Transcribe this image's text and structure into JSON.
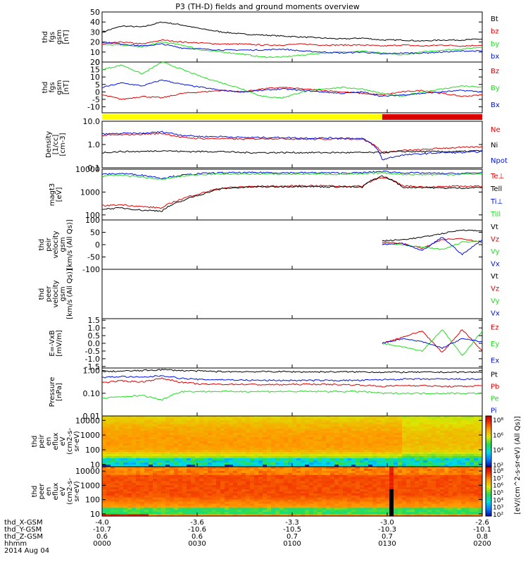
{
  "title": "P3 (TH-D) fields and ground moments overview",
  "colors": {
    "black": "#000000",
    "red": "#e00000",
    "green": "#22dd22",
    "blue": "#0010e0",
    "yellow": "#ffff00",
    "bar_red": "#dd0000"
  },
  "chart_data": [
    {
      "type": "line",
      "name": "fgs_mag",
      "ylabel": [
        "thd",
        "fgs",
        "gsm",
        "[nT]"
      ],
      "ylim": [
        0,
        50
      ],
      "yticks": [
        "50",
        "40",
        "30",
        "20",
        "10",
        "0"
      ],
      "ytick_values": [
        50,
        40,
        30,
        20,
        10,
        0
      ],
      "series": [
        {
          "name": "Bt",
          "color": "black",
          "values": [
            30,
            36,
            35,
            40,
            37,
            33,
            30,
            28,
            27,
            26,
            25,
            24,
            23,
            24,
            22,
            22,
            21,
            22,
            22,
            23
          ]
        },
        {
          "name": "bz",
          "color": "red",
          "values": [
            18,
            20,
            18,
            22,
            20,
            19,
            18,
            18,
            17,
            17,
            18,
            17,
            17,
            17,
            16,
            17,
            16,
            17,
            16,
            17
          ]
        },
        {
          "name": "by",
          "color": "green",
          "values": [
            17,
            17,
            15,
            20,
            17,
            12,
            10,
            8,
            5,
            5,
            7,
            9,
            10,
            11,
            9,
            7,
            10,
            12,
            13,
            15
          ]
        },
        {
          "name": "bx",
          "color": "blue",
          "values": [
            20,
            18,
            16,
            18,
            14,
            13,
            12,
            12,
            12,
            13,
            11,
            10,
            9,
            10,
            8,
            9,
            9,
            10,
            11,
            11
          ]
        }
      ]
    },
    {
      "type": "line",
      "name": "fgs_gsm",
      "ylabel": [
        "thd",
        "fgs",
        "gsm",
        "[nT]"
      ],
      "ylim": [
        -14,
        20
      ],
      "yticks": [
        "20",
        "15",
        "10",
        "5",
        "0",
        "-5",
        "-10"
      ],
      "ytick_values": [
        20,
        15,
        10,
        5,
        0,
        -5,
        -10
      ],
      "series": [
        {
          "name": "Bz",
          "color": "red",
          "values": [
            -2,
            -5,
            -3,
            -4,
            -1,
            0,
            1,
            0,
            2,
            3,
            2,
            1,
            0,
            -1,
            -2,
            0,
            1,
            -1,
            -3,
            -2
          ]
        },
        {
          "name": "By",
          "color": "green",
          "values": [
            15,
            18,
            12,
            20,
            15,
            10,
            6,
            2,
            -3,
            -4,
            0,
            2,
            3,
            2,
            -1,
            -3,
            0,
            2,
            4,
            3
          ]
        },
        {
          "name": "Bx",
          "color": "blue",
          "values": [
            3,
            6,
            4,
            8,
            5,
            3,
            1,
            0,
            1,
            2,
            1,
            0,
            -1,
            0,
            -3,
            -2,
            -1,
            0,
            1,
            0
          ]
        }
      ]
    },
    {
      "type": "line",
      "name": "density",
      "ylabel": [
        "Density",
        "[1/cc]",
        "[cm-3]"
      ],
      "log": true,
      "ylim": [
        0.1,
        10
      ],
      "yticks": [
        "10.0",
        "1.0",
        "0.1"
      ],
      "ytick_values": [
        10,
        1,
        0.1
      ],
      "series": [
        {
          "name": "Ne",
          "color": "red",
          "values": [
            2.5,
            2.6,
            2.8,
            3.0,
            2.0,
            1.8,
            1.8,
            1.7,
            1.8,
            1.8,
            1.7,
            1.7,
            1.8,
            1.7,
            0.45,
            0.55,
            0.6,
            0.7,
            0.75,
            0.8
          ]
        },
        {
          "name": "Ni",
          "color": "black",
          "values": [
            0.45,
            0.5,
            0.5,
            0.55,
            0.5,
            0.5,
            0.5,
            0.45,
            0.45,
            0.45,
            0.45,
            0.45,
            0.45,
            0.45,
            0.45,
            0.5,
            0.5,
            0.5,
            0.5,
            0.55
          ]
        },
        {
          "name": "Npot",
          "color": "blue",
          "values": [
            2.8,
            3.0,
            3.0,
            3.5,
            2.5,
            2.2,
            2.2,
            2.0,
            2.0,
            2.0,
            1.9,
            1.9,
            1.9,
            1.8,
            0.22,
            0.35,
            0.4,
            0.45,
            0.45,
            0.5
          ]
        }
      ]
    },
    {
      "type": "line",
      "name": "temperature",
      "ylabel": [
        "magt3",
        "[eV]"
      ],
      "log": true,
      "ylim": [
        60,
        10000
      ],
      "yticks": [
        "10000",
        "1000",
        "100"
      ],
      "ytick_values": [
        10000,
        1000,
        100
      ],
      "series": [
        {
          "name": "Te⊥",
          "color": "red",
          "values": [
            250,
            280,
            230,
            200,
            500,
            900,
            1500,
            1700,
            1800,
            1800,
            1900,
            1900,
            1800,
            1800,
            4500,
            1900,
            1700,
            1700,
            1800,
            1800
          ]
        },
        {
          "name": "Tell",
          "color": "black",
          "values": [
            180,
            200,
            160,
            150,
            400,
            800,
            1400,
            1600,
            1700,
            1700,
            1800,
            1700,
            1700,
            1600,
            5000,
            1600,
            1600,
            1500,
            1500,
            1600
          ]
        },
        {
          "name": "Ti⊥",
          "color": "blue",
          "values": [
            6000,
            6500,
            5500,
            4000,
            5500,
            6500,
            7000,
            7000,
            7200,
            7000,
            7000,
            7000,
            6800,
            7000,
            8000,
            7000,
            6800,
            6500,
            6500,
            7000
          ]
        },
        {
          "name": "Till",
          "color": "green",
          "values": [
            5000,
            5500,
            4500,
            3500,
            5000,
            6000,
            6200,
            6200,
            6300,
            6000,
            6200,
            6200,
            6000,
            6200,
            7000,
            6000,
            5800,
            5800,
            6000,
            6200
          ]
        }
      ]
    },
    {
      "type": "line",
      "name": "peir_velocity",
      "ylabel": [
        "thd",
        "peir",
        "velocity",
        "gsm",
        "[km/s (All Qs)]"
      ],
      "ylim": [
        -100,
        100
      ],
      "yticks": [
        "100",
        "50",
        "0",
        "-50",
        "-100"
      ],
      "ytick_values": [
        100,
        50,
        0,
        -50,
        -100
      ],
      "data_start_index": 14,
      "series": [
        {
          "name": "Vt",
          "color": "black",
          "values": [
            15,
            20,
            30,
            45,
            60,
            55
          ]
        },
        {
          "name": "Vz",
          "color": "red",
          "values": [
            10,
            5,
            -15,
            20,
            25,
            10
          ]
        },
        {
          "name": "Vy",
          "color": "green",
          "values": [
            5,
            0,
            -10,
            -20,
            10,
            15
          ]
        },
        {
          "name": "Vx",
          "color": "blue",
          "values": [
            0,
            5,
            -25,
            30,
            -40,
            20
          ]
        }
      ]
    },
    {
      "type": "line",
      "name": "peer_velocity",
      "ylabel": [
        "thd",
        "peer",
        "velocity",
        "gsm",
        "[km/s (All Qs)]"
      ],
      "ylim": [
        0,
        1
      ],
      "yticks": [],
      "ytick_values": [],
      "series": [
        {
          "name": "Vt",
          "color": "black",
          "values": []
        },
        {
          "name": "Vz",
          "color": "red",
          "values": []
        },
        {
          "name": "Vy",
          "color": "green",
          "values": []
        },
        {
          "name": "Vx",
          "color": "blue",
          "values": []
        }
      ]
    },
    {
      "type": "line",
      "name": "efield",
      "ylabel": [
        "E=-VxB",
        "[mV/m]"
      ],
      "ylim": [
        -1.6,
        1.6
      ],
      "yticks": [
        "1.5",
        "1.0",
        "0.5",
        "0.0",
        "-0.5",
        "-1.0",
        "-1.5"
      ],
      "ytick_values": [
        1.5,
        1,
        0.5,
        0,
        -0.5,
        -1,
        -1.5
      ],
      "data_start_index": 14,
      "series": [
        {
          "name": "Ez",
          "color": "red",
          "values": [
            0.0,
            0.4,
            0.8,
            -0.6,
            0.9,
            -0.5
          ]
        },
        {
          "name": "Ey",
          "color": "green",
          "values": [
            0.0,
            -0.2,
            -0.5,
            0.9,
            -0.8,
            0.8
          ]
        },
        {
          "name": "Ex",
          "color": "blue",
          "values": [
            0.0,
            0.3,
            0.1,
            -0.3,
            0.3,
            0.1
          ]
        }
      ]
    },
    {
      "type": "line",
      "name": "pressure",
      "ylabel": [
        "Pressure",
        "[nPa]"
      ],
      "log": true,
      "ylim": [
        0.01,
        1.3
      ],
      "yticks": [
        "1.00",
        "0.10",
        "0.01"
      ],
      "ytick_values": [
        1,
        0.1,
        0.01
      ],
      "series": [
        {
          "name": "Pt",
          "color": "black",
          "values": [
            0.9,
            0.95,
            1.0,
            1.1,
            1.0,
            0.95,
            0.9,
            0.9,
            0.9,
            0.9,
            0.88,
            0.88,
            0.88,
            0.88,
            0.85,
            0.85,
            0.85,
            0.85,
            0.85,
            0.85
          ]
        },
        {
          "name": "Pb",
          "color": "red",
          "values": [
            0.3,
            0.35,
            0.32,
            0.45,
            0.3,
            0.25,
            0.25,
            0.25,
            0.24,
            0.24,
            0.25,
            0.25,
            0.24,
            0.23,
            0.2,
            0.22,
            0.22,
            0.2,
            0.2,
            0.22
          ]
        },
        {
          "name": "Pe",
          "color": "green",
          "values": [
            0.06,
            0.07,
            0.08,
            0.05,
            0.12,
            0.12,
            0.12,
            0.12,
            0.12,
            0.12,
            0.12,
            0.12,
            0.12,
            0.12,
            0.1,
            0.1,
            0.1,
            0.1,
            0.1,
            0.1
          ]
        },
        {
          "name": "Pi",
          "color": "blue",
          "values": [
            0.5,
            0.55,
            0.5,
            0.6,
            0.45,
            0.4,
            0.4,
            0.38,
            0.37,
            0.37,
            0.37,
            0.37,
            0.37,
            0.37,
            0.4,
            0.42,
            0.42,
            0.42,
            0.42,
            0.42
          ]
        }
      ]
    },
    {
      "type": "heatmap",
      "name": "peir_spectrogram",
      "ylabel": [
        "thd",
        "peir",
        "en",
        "eflux",
        "eV",
        "(cm2-s-",
        "sr-eV)"
      ],
      "log": true,
      "ylim": [
        7,
        20000
      ],
      "yticks": [
        "10000",
        "1000",
        "100",
        "10"
      ],
      "ytick_values": [
        10000,
        1000,
        100,
        10
      ]
    },
    {
      "type": "heatmap",
      "name": "peer_spectrogram",
      "ylabel": [
        "thd",
        "peer",
        "en",
        "eflux",
        "eV",
        "(cm2-s-",
        "sr-eV)"
      ],
      "log": true,
      "ylim": [
        7,
        20000
      ],
      "yticks": [
        "10000",
        "1000",
        "100",
        "10"
      ],
      "ytick_values": [
        10000,
        1000,
        100,
        10
      ]
    }
  ],
  "colorbar": {
    "label": "[eV/(cm^2-s-sr-eV) (All Qs)]",
    "ticks_top": [
      "10⁸",
      "10⁶",
      "10⁴",
      "10²"
    ],
    "ticks_bottom": [
      "10⁸",
      "10⁷",
      "10⁶",
      "10⁵",
      "10⁴",
      "10³",
      "10²"
    ]
  },
  "status_bar": {
    "yellow_until_index": 14
  },
  "x_axis": {
    "rows": [
      {
        "label": "thd_X-GSM",
        "values": [
          "-4.0",
          "-3.6",
          "-3.3",
          "-3.0",
          "-2.6"
        ]
      },
      {
        "label": "thd_Y-GSM",
        "values": [
          "-10.7",
          "-10.6",
          "-10.5",
          "-10.3",
          "-10.1"
        ]
      },
      {
        "label": "thd_Z-GSM",
        "values": [
          "0.6",
          "0.6",
          "0.7",
          "0.7",
          "0.8"
        ]
      },
      {
        "label": "hhmm",
        "values": [
          "0000",
          "0030",
          "0100",
          "0130",
          "0200"
        ]
      }
    ],
    "date": "2014 Aug 04"
  }
}
